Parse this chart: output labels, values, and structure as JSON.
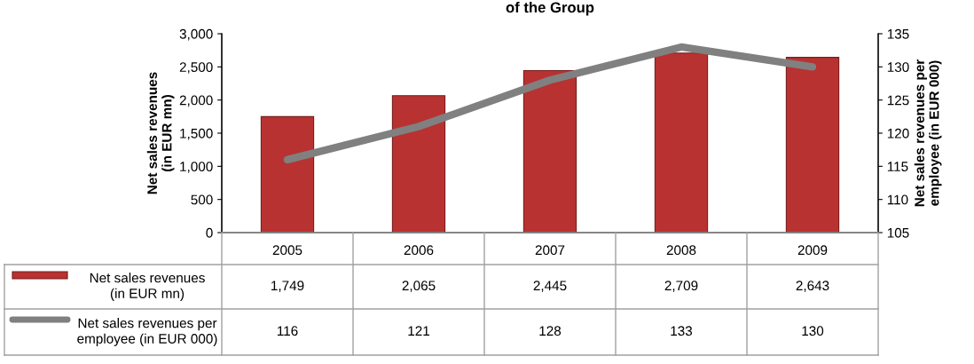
{
  "chart_data": {
    "type": "bar",
    "title": "of the Group",
    "categories": [
      "2005",
      "2006",
      "2007",
      "2008",
      "2009"
    ],
    "series": [
      {
        "name": "Net sales revenues\n(in EUR mn)",
        "color": "#b83232",
        "values": [
          1749,
          2065,
          2445,
          2709,
          2643
        ],
        "value_labels": [
          "1,749",
          "2,065",
          "2,445",
          "2,709",
          "2,643"
        ]
      },
      {
        "name": "Net sales revenues per\nemployee (in EUR 000)",
        "type": "line",
        "axis": "y2",
        "color": "#808080",
        "values": [
          116,
          121,
          128,
          133,
          130
        ],
        "value_labels": [
          "116",
          "121",
          "128",
          "133",
          "130"
        ]
      }
    ],
    "ylabel": "Net sales revenues\n(in EUR mn)",
    "y2label": "Net sales revenues per\nemployee (in EUR 000)",
    "ylim": [
      0,
      3000
    ],
    "yticks": [
      0,
      500,
      {
        "value": 1000,
        "label": "1,000"
      },
      {
        "value": 1500,
        "label": "1,500"
      },
      {
        "value": 2000,
        "label": "2,000"
      },
      {
        "value": 2500,
        "label": "2,500"
      },
      {
        "value": 3000,
        "label": "3,000"
      }
    ],
    "y2lim": [
      105,
      135
    ],
    "y2ticks": [
      105,
      110,
      115,
      120,
      125,
      130,
      135
    ],
    "legend": "bottom",
    "grid": false,
    "marker": "none",
    "line_style": "solid"
  }
}
